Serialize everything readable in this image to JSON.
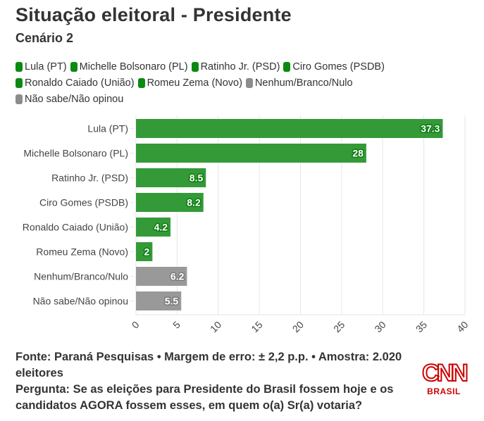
{
  "header": {
    "title": "Situação eleitoral - Presidente",
    "subtitle": "Cenário 2"
  },
  "colors": {
    "bar_green": "#339a37",
    "bar_gray": "#999999",
    "legend_green": "#0b8a12",
    "legend_gray": "#8c8c8c",
    "label_green_outline": "#0b7a10",
    "label_gray_outline": "#7a7a7a",
    "gridline": "#e6e6e6",
    "brand_red": "#cc0000"
  },
  "chart_data": {
    "type": "bar",
    "orientation": "horizontal",
    "title": "Situação eleitoral - Presidente",
    "subtitle": "Cenário 2",
    "categories": [
      "Lula (PT)",
      "Michelle Bolsonaro (PL)",
      "Ratinho Jr. (PSD)",
      "Ciro Gomes (PSDB)",
      "Ronaldo Caiado (União)",
      "Romeu Zema (Novo)",
      "Nenhum/Branco/Nulo",
      "Não sabe/Não opinou"
    ],
    "values": [
      37.3,
      28,
      8.5,
      8.2,
      4.2,
      2,
      6.2,
      5.5
    ],
    "value_labels": [
      "37.3",
      "28",
      "8.5",
      "8.2",
      "4.2",
      "2",
      "6.2",
      "5.5"
    ],
    "bar_color_group": [
      "green",
      "green",
      "green",
      "green",
      "green",
      "green",
      "gray",
      "gray"
    ],
    "xlim": [
      0,
      40
    ],
    "xticks": [
      0,
      5,
      10,
      15,
      20,
      25,
      30,
      35,
      40
    ],
    "xtick_labels": [
      "0",
      "5",
      "10",
      "15",
      "20",
      "25",
      "30",
      "35",
      "40"
    ],
    "xtick_rotation_deg": -45,
    "xlabel": "",
    "ylabel": "",
    "grid": true,
    "legend_position": "top-left",
    "legend": [
      {
        "label": "Lula (PT)",
        "group": "green"
      },
      {
        "label": "Michelle Bolsonaro (PL)",
        "group": "green"
      },
      {
        "label": "Ratinho Jr. (PSD)",
        "group": "green"
      },
      {
        "label": "Ciro Gomes (PSDB)",
        "group": "green"
      },
      {
        "label": "Ronaldo Caiado (União)",
        "group": "green"
      },
      {
        "label": "Romeu Zema (Novo)",
        "group": "green"
      },
      {
        "label": "Nenhum/Branco/Nulo",
        "group": "gray"
      },
      {
        "label": "Não sabe/Não opinou",
        "group": "gray"
      }
    ]
  },
  "footer": {
    "source_line": "Fonte: Paraná Pesquisas • Margem de erro: ± 2,2 p.p. • Amostra: 2.020 eleitores",
    "question_line": "Pergunta: Se as eleições para Presidente do Brasil fossem hoje e os candidatos AGORA fossem esses, em quem o(a) Sr(a) votaria?"
  },
  "logo": {
    "brand": "CNN",
    "region": "BRASIL"
  }
}
